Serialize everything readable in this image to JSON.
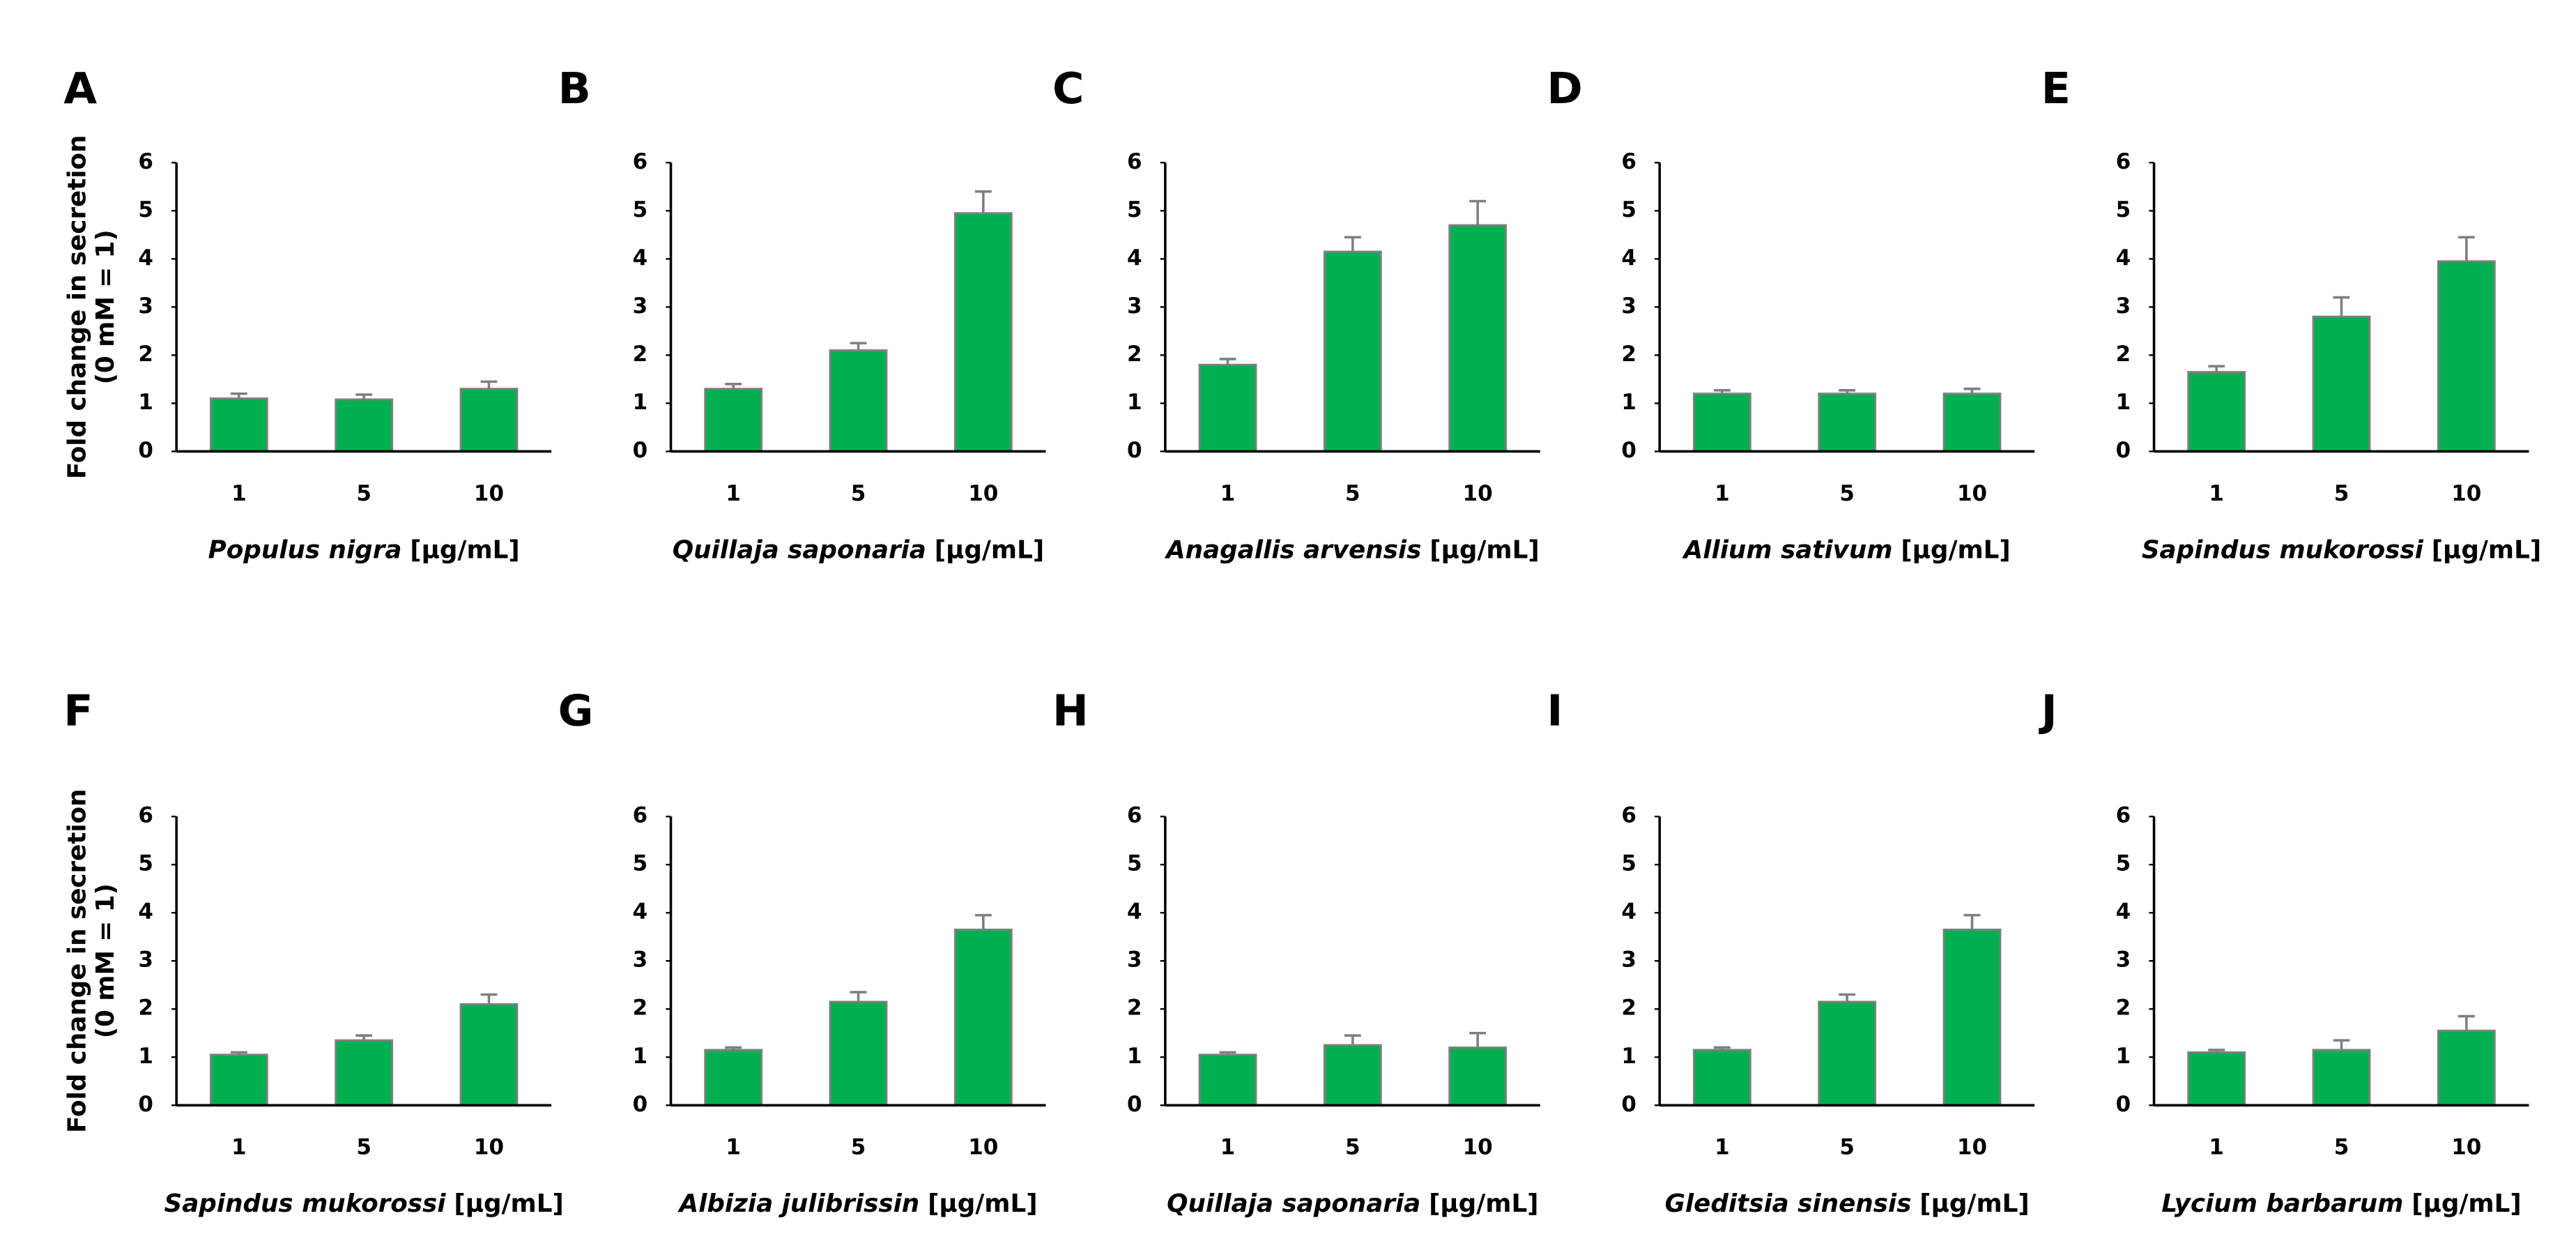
{
  "chart_data": [
    {
      "type": "bar",
      "panel": "A",
      "y_label": [
        "Fold change in secretion",
        "(0 mM = 1)"
      ],
      "x_label": "Populus nigra",
      "x_unit": "[µg/mL]",
      "categories": [
        "1",
        "5",
        "10"
      ],
      "values": [
        1.1,
        1.08,
        1.3
      ],
      "errors": [
        0.1,
        0.1,
        0.15
      ],
      "color": "#00b050",
      "ylim": [
        0,
        6
      ],
      "yticks": [
        0,
        1,
        2,
        3,
        4,
        5,
        6
      ]
    },
    {
      "type": "bar",
      "panel": "B",
      "x_label": "Quillaja saponaria",
      "x_unit": "[µg/mL]",
      "categories": [
        "1",
        "5",
        "10"
      ],
      "values": [
        1.3,
        2.1,
        4.95
      ],
      "errors": [
        0.1,
        0.15,
        0.45
      ],
      "color": "#00b050",
      "ylim": [
        0,
        6
      ],
      "yticks": [
        0,
        1,
        2,
        3,
        4,
        5,
        6
      ]
    },
    {
      "type": "bar",
      "panel": "C",
      "x_label": "Anagallis arvensis",
      "x_unit": "[µg/mL]",
      "categories": [
        "1",
        "5",
        "10"
      ],
      "values": [
        1.8,
        4.15,
        4.7
      ],
      "errors": [
        0.12,
        0.3,
        0.5
      ],
      "color": "#00b050",
      "ylim": [
        0,
        6
      ],
      "yticks": [
        0,
        1,
        2,
        3,
        4,
        5,
        6
      ]
    },
    {
      "type": "bar",
      "panel": "D",
      "x_label": "Allium sativum",
      "x_unit": "[µg/mL]",
      "categories": [
        "1",
        "5",
        "10"
      ],
      "values": [
        1.2,
        1.2,
        1.2
      ],
      "errors": [
        0.07,
        0.07,
        0.1
      ],
      "color": "#00b050",
      "ylim": [
        0,
        6
      ],
      "yticks": [
        0,
        1,
        2,
        3,
        4,
        5,
        6
      ]
    },
    {
      "type": "bar",
      "panel": "E",
      "x_label": "Sapindus mukorossi",
      "x_unit": "[µg/mL]",
      "categories": [
        "1",
        "5",
        "10"
      ],
      "values": [
        1.65,
        2.8,
        3.95
      ],
      "errors": [
        0.12,
        0.4,
        0.5
      ],
      "color": "#00b050",
      "ylim": [
        0,
        6
      ],
      "yticks": [
        0,
        1,
        2,
        3,
        4,
        5,
        6
      ]
    },
    {
      "type": "bar",
      "panel": "F",
      "y_label": [
        "Fold change in secretion",
        "(0 mM = 1)"
      ],
      "x_label": "Sapindus mukorossi",
      "x_unit": "[µg/mL]",
      "categories": [
        "1",
        "5",
        "10"
      ],
      "values": [
        1.05,
        1.35,
        2.1
      ],
      "errors": [
        0.05,
        0.1,
        0.2
      ],
      "color": "#00b050",
      "ylim": [
        0,
        6
      ],
      "yticks": [
        0,
        1,
        2,
        3,
        4,
        5,
        6
      ]
    },
    {
      "type": "bar",
      "panel": "G",
      "x_label": "Albizia julibrissin",
      "x_unit": "[µg/mL]",
      "categories": [
        "1",
        "5",
        "10"
      ],
      "values": [
        1.15,
        2.15,
        3.65
      ],
      "errors": [
        0.05,
        0.2,
        0.3
      ],
      "color": "#00b050",
      "ylim": [
        0,
        6
      ],
      "yticks": [
        0,
        1,
        2,
        3,
        4,
        5,
        6
      ]
    },
    {
      "type": "bar",
      "panel": "H",
      "x_label": "Quillaja saponaria",
      "x_unit": "[µg/mL]",
      "categories": [
        "1",
        "5",
        "10"
      ],
      "values": [
        1.05,
        1.25,
        1.2
      ],
      "errors": [
        0.05,
        0.2,
        0.3
      ],
      "color": "#00b050",
      "ylim": [
        0,
        6
      ],
      "yticks": [
        0,
        1,
        2,
        3,
        4,
        5,
        6
      ]
    },
    {
      "type": "bar",
      "panel": "I",
      "x_label": "Gleditsia sinensis",
      "x_unit": "[µg/mL]",
      "categories": [
        "1",
        "5",
        "10"
      ],
      "values": [
        1.15,
        2.15,
        3.65
      ],
      "errors": [
        0.05,
        0.15,
        0.3
      ],
      "color": "#00b050",
      "ylim": [
        0,
        6
      ],
      "yticks": [
        0,
        1,
        2,
        3,
        4,
        5,
        6
      ]
    },
    {
      "type": "bar",
      "panel": "J",
      "x_label": "Lycium barbarum",
      "x_unit": "[µg/mL]",
      "categories": [
        "1",
        "5",
        "10"
      ],
      "values": [
        1.1,
        1.15,
        1.55
      ],
      "errors": [
        0.05,
        0.2,
        0.3
      ],
      "color": "#00b050",
      "ylim": [
        0,
        6
      ],
      "yticks": [
        0,
        1,
        2,
        3,
        4,
        5,
        6
      ]
    }
  ]
}
